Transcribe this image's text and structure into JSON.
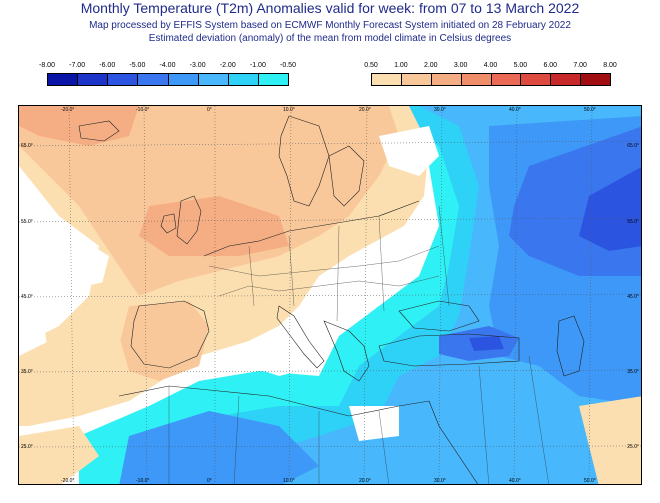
{
  "title": "Monthly Temperature (T2m) Anomalies valid for week: from 07 to 13 March 2022",
  "subtitle1": "Map processed by EFFIS System based on ECMWF Monthly Forecast System initiated on 28 February 2022",
  "subtitle2": "Estimated deviation (anomaly) of the mean from model climate in Celsius degrees",
  "legend_negative": {
    "ticks": [
      "-8.00",
      "-7.00",
      "-6.00",
      "-5.00",
      "-4.00",
      "-3.00",
      "-2.00",
      "-1.00",
      "-0.50"
    ],
    "colors": [
      "#0a14a6",
      "#1c35c8",
      "#2b55e0",
      "#3a77ef",
      "#3e98f8",
      "#48b7fb",
      "#2fd2f7",
      "#2ff0f4"
    ]
  },
  "legend_positive": {
    "ticks": [
      "0.50",
      "1.00",
      "2.00",
      "3.00",
      "4.00",
      "5.00",
      "6.00",
      "7.00",
      "8.00"
    ],
    "colors": [
      "#fcdfb0",
      "#f9c89a",
      "#f5ae83",
      "#f08d6b",
      "#ea6a55",
      "#dd4a3f",
      "#c7282a",
      "#a10e12"
    ]
  },
  "map": {
    "lon_labels_top": [
      "-20.0°",
      "-10.0°",
      "0°",
      "10.0°",
      "20.0°",
      "30.0°",
      "40.0°",
      "50.0°"
    ],
    "lon_labels_bottom": [
      "-20.0°",
      "-10.0°",
      "0°",
      "10.0°",
      "20.0°",
      "30.0°",
      "40.0°",
      "50.0°"
    ],
    "lat_labels_left": [
      "65.0°",
      "55.0°",
      "45.0°",
      "35.0°",
      "25.0°"
    ],
    "lat_labels_right": [
      "65.0°",
      "55.0°",
      "45.0°",
      "35.0°",
      "25.0°"
    ],
    "colors": {
      "white": "#ffffff",
      "warm1": "#fcdfb0",
      "warm2": "#f9c89a",
      "warm3": "#f5ae83",
      "cool1": "#2ff0f4",
      "cool2": "#2fd2f7",
      "cool3": "#48b7fb",
      "cool4": "#3e98f8",
      "cool5": "#3a77ef",
      "cool6": "#2b55e0"
    }
  }
}
